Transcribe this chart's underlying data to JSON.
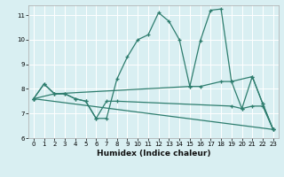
{
  "title": "",
  "xlabel": "Humidex (Indice chaleur)",
  "bg_color": "#d9eff2",
  "grid_color": "#ffffff",
  "line_color": "#2e7d6e",
  "xlim": [
    -0.5,
    23.5
  ],
  "ylim": [
    6,
    11.4
  ],
  "yticks": [
    6,
    7,
    8,
    9,
    10,
    11
  ],
  "xticks": [
    0,
    1,
    2,
    3,
    4,
    5,
    6,
    7,
    8,
    9,
    10,
    11,
    12,
    13,
    14,
    15,
    16,
    17,
    18,
    19,
    20,
    21,
    22,
    23
  ],
  "lines": [
    {
      "x": [
        0,
        1,
        2,
        3,
        4,
        5,
        6,
        7,
        8,
        9,
        10,
        11,
        12,
        13,
        14,
        15,
        16,
        17,
        18,
        19,
        20,
        21,
        22,
        23
      ],
      "y": [
        7.6,
        8.2,
        7.8,
        7.8,
        7.6,
        7.5,
        6.8,
        6.8,
        8.4,
        9.3,
        10.0,
        10.2,
        11.1,
        10.75,
        10.0,
        8.1,
        9.95,
        11.2,
        11.25,
        8.3,
        7.2,
        8.5,
        7.4,
        6.35
      ]
    },
    {
      "x": [
        0,
        1,
        2,
        15,
        16,
        18,
        19,
        21,
        22,
        23
      ],
      "y": [
        7.6,
        8.2,
        7.8,
        8.1,
        8.1,
        8.3,
        8.3,
        8.5,
        7.4,
        6.35
      ]
    },
    {
      "x": [
        0,
        2,
        3,
        4,
        5,
        6,
        7,
        8,
        19,
        20,
        21,
        22,
        23
      ],
      "y": [
        7.6,
        7.8,
        7.8,
        7.6,
        7.5,
        6.8,
        7.5,
        7.5,
        7.3,
        7.2,
        7.3,
        7.3,
        6.35
      ]
    },
    {
      "x": [
        0,
        23
      ],
      "y": [
        7.6,
        6.35
      ]
    }
  ]
}
